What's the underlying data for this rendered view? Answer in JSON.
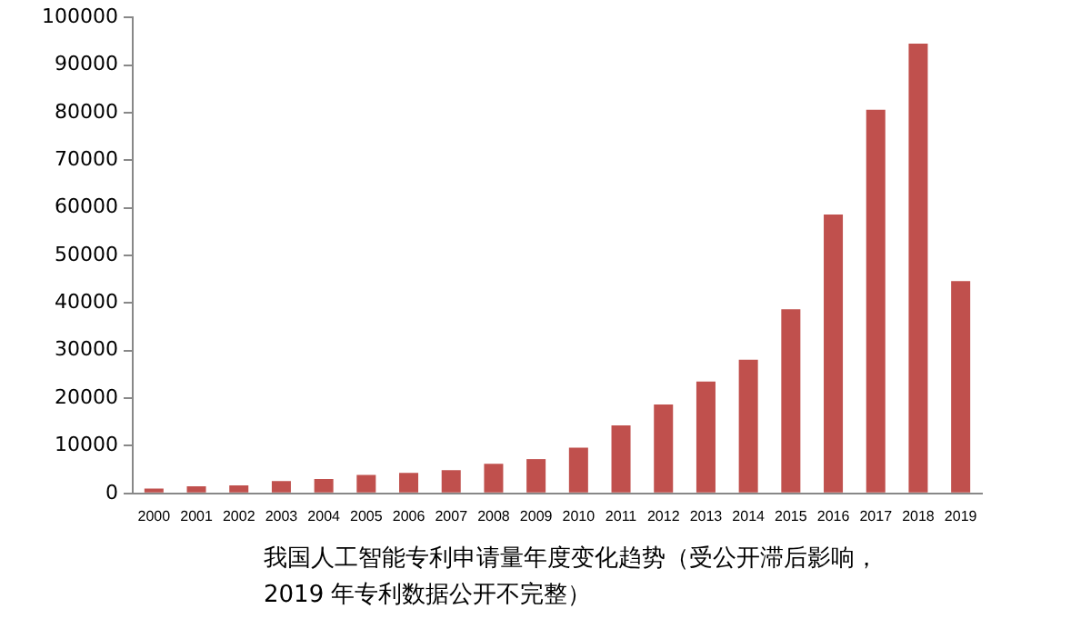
{
  "chart_data": {
    "type": "bar",
    "title": "我国人工智能专利申请量年度变化趋势（受公开滞后影响，2019 年专利数据公开不完整）",
    "categories": [
      "2000",
      "2001",
      "2002",
      "2003",
      "2004",
      "2005",
      "2006",
      "2007",
      "2008",
      "2009",
      "2010",
      "2011",
      "2012",
      "2013",
      "2014",
      "2015",
      "2016",
      "2017",
      "2018",
      "2019"
    ],
    "values": [
      1000,
      1500,
      1700,
      2600,
      3000,
      3900,
      4300,
      4900,
      6200,
      7200,
      9600,
      14300,
      18700,
      23500,
      28100,
      38700,
      58600,
      80600,
      94500,
      44600
    ],
    "color": "#c0504d",
    "ylim": [
      0,
      100000
    ],
    "yticks": [
      0,
      10000,
      20000,
      30000,
      40000,
      50000,
      60000,
      70000,
      80000,
      90000,
      100000
    ],
    "grid": false,
    "legend": false
  }
}
